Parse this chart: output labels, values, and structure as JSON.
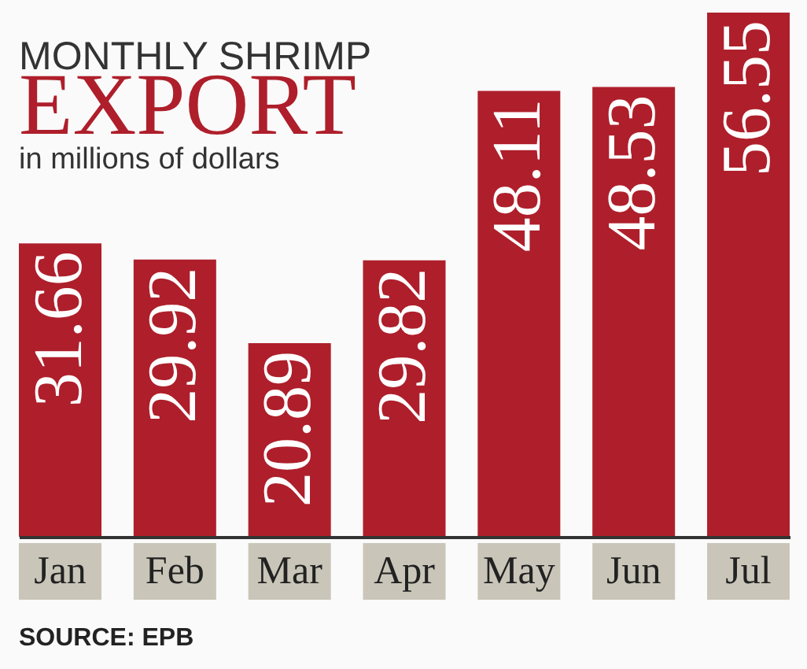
{
  "chart_data": {
    "type": "bar",
    "title": "MONTHLY SHRIMP\nEXPORT",
    "subtitle": "in millions of dollars",
    "categories": [
      "Jan",
      "Feb",
      "Mar",
      "Apr",
      "May",
      "Jun",
      "Jul"
    ],
    "values": [
      31.66,
      29.92,
      20.89,
      29.82,
      48.11,
      48.53,
      56.55
    ],
    "color": "#ae1f2b",
    "data_labels": true,
    "annotations": [
      "SOURCE: EPB"
    ]
  }
}
